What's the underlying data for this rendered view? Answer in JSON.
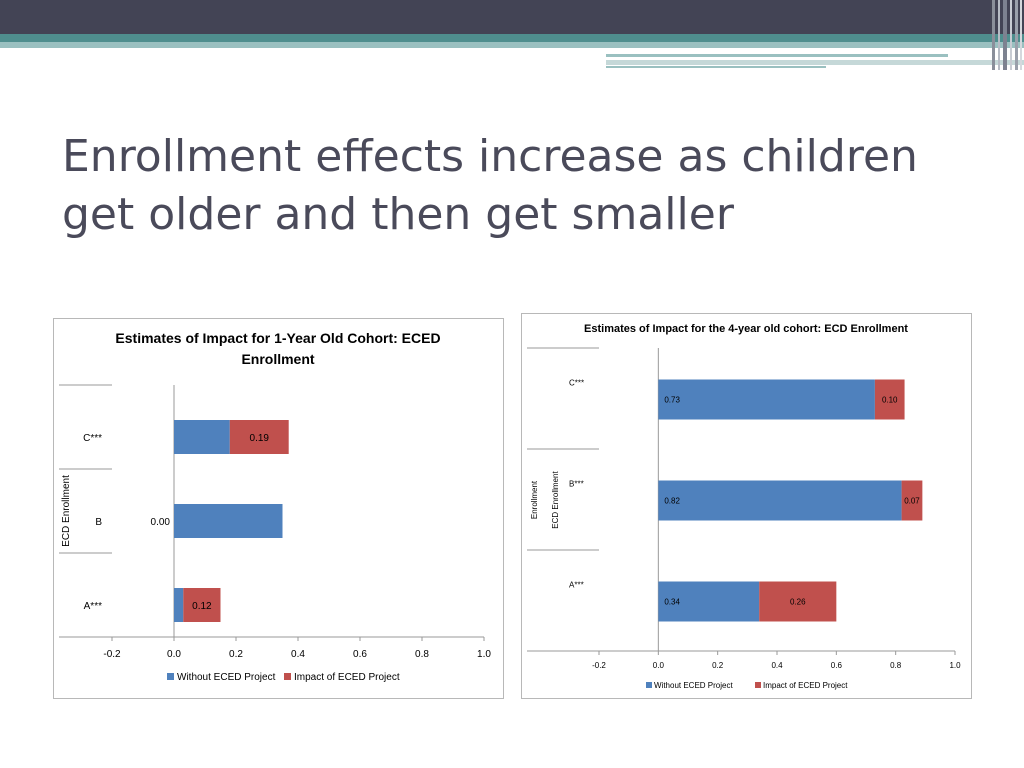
{
  "slide": {
    "title": "Enrollment effects increase as children get older and then get smaller"
  },
  "colors": {
    "without": "#4f81bd",
    "impact": "#c0504d"
  },
  "chart_data": [
    {
      "type": "bar",
      "orientation": "horizontal",
      "stacked": true,
      "title": "Estimates of Impact for 1-Year Old Cohort: ECED Enrollment",
      "ylabel": "ECD Enrollment",
      "categories": [
        "C***",
        "B",
        "A***"
      ],
      "series": [
        {
          "name": "Without ECED Project",
          "values": [
            0.18,
            0.35,
            0.03
          ]
        },
        {
          "name": "Impact of ECED Project",
          "values": [
            0.19,
            0.0,
            0.12
          ]
        }
      ],
      "data_labels": [
        "0.19",
        "0.00",
        "0.12"
      ],
      "xlim": [
        -0.2,
        1.0
      ],
      "xticks": [
        "-0.2",
        "0.0",
        "0.2",
        "0.4",
        "0.6",
        "0.8",
        "1.0"
      ],
      "legend": "bottom"
    },
    {
      "type": "bar",
      "orientation": "horizontal",
      "stacked": true,
      "title": "Estimates of Impact for the 4-year old cohort: ECD Enrollment",
      "ylabel": [
        "Enrollment",
        "ECD Enrollment"
      ],
      "categories": [
        "C***",
        "B***",
        "A***"
      ],
      "series": [
        {
          "name": "Without ECED Project",
          "values": [
            0.73,
            0.82,
            0.34
          ],
          "labels": [
            "0.73",
            "0.82",
            "0.34"
          ]
        },
        {
          "name": "Impact of ECED Project",
          "values": [
            0.1,
            0.07,
            0.26
          ],
          "labels": [
            "0.10",
            "0.07",
            "0.26"
          ]
        }
      ],
      "xlim": [
        -0.2,
        1.0
      ],
      "xticks": [
        "-0.2",
        "0.0",
        "0.2",
        "0.4",
        "0.6",
        "0.8",
        "1.0"
      ],
      "legend": "bottom"
    }
  ]
}
